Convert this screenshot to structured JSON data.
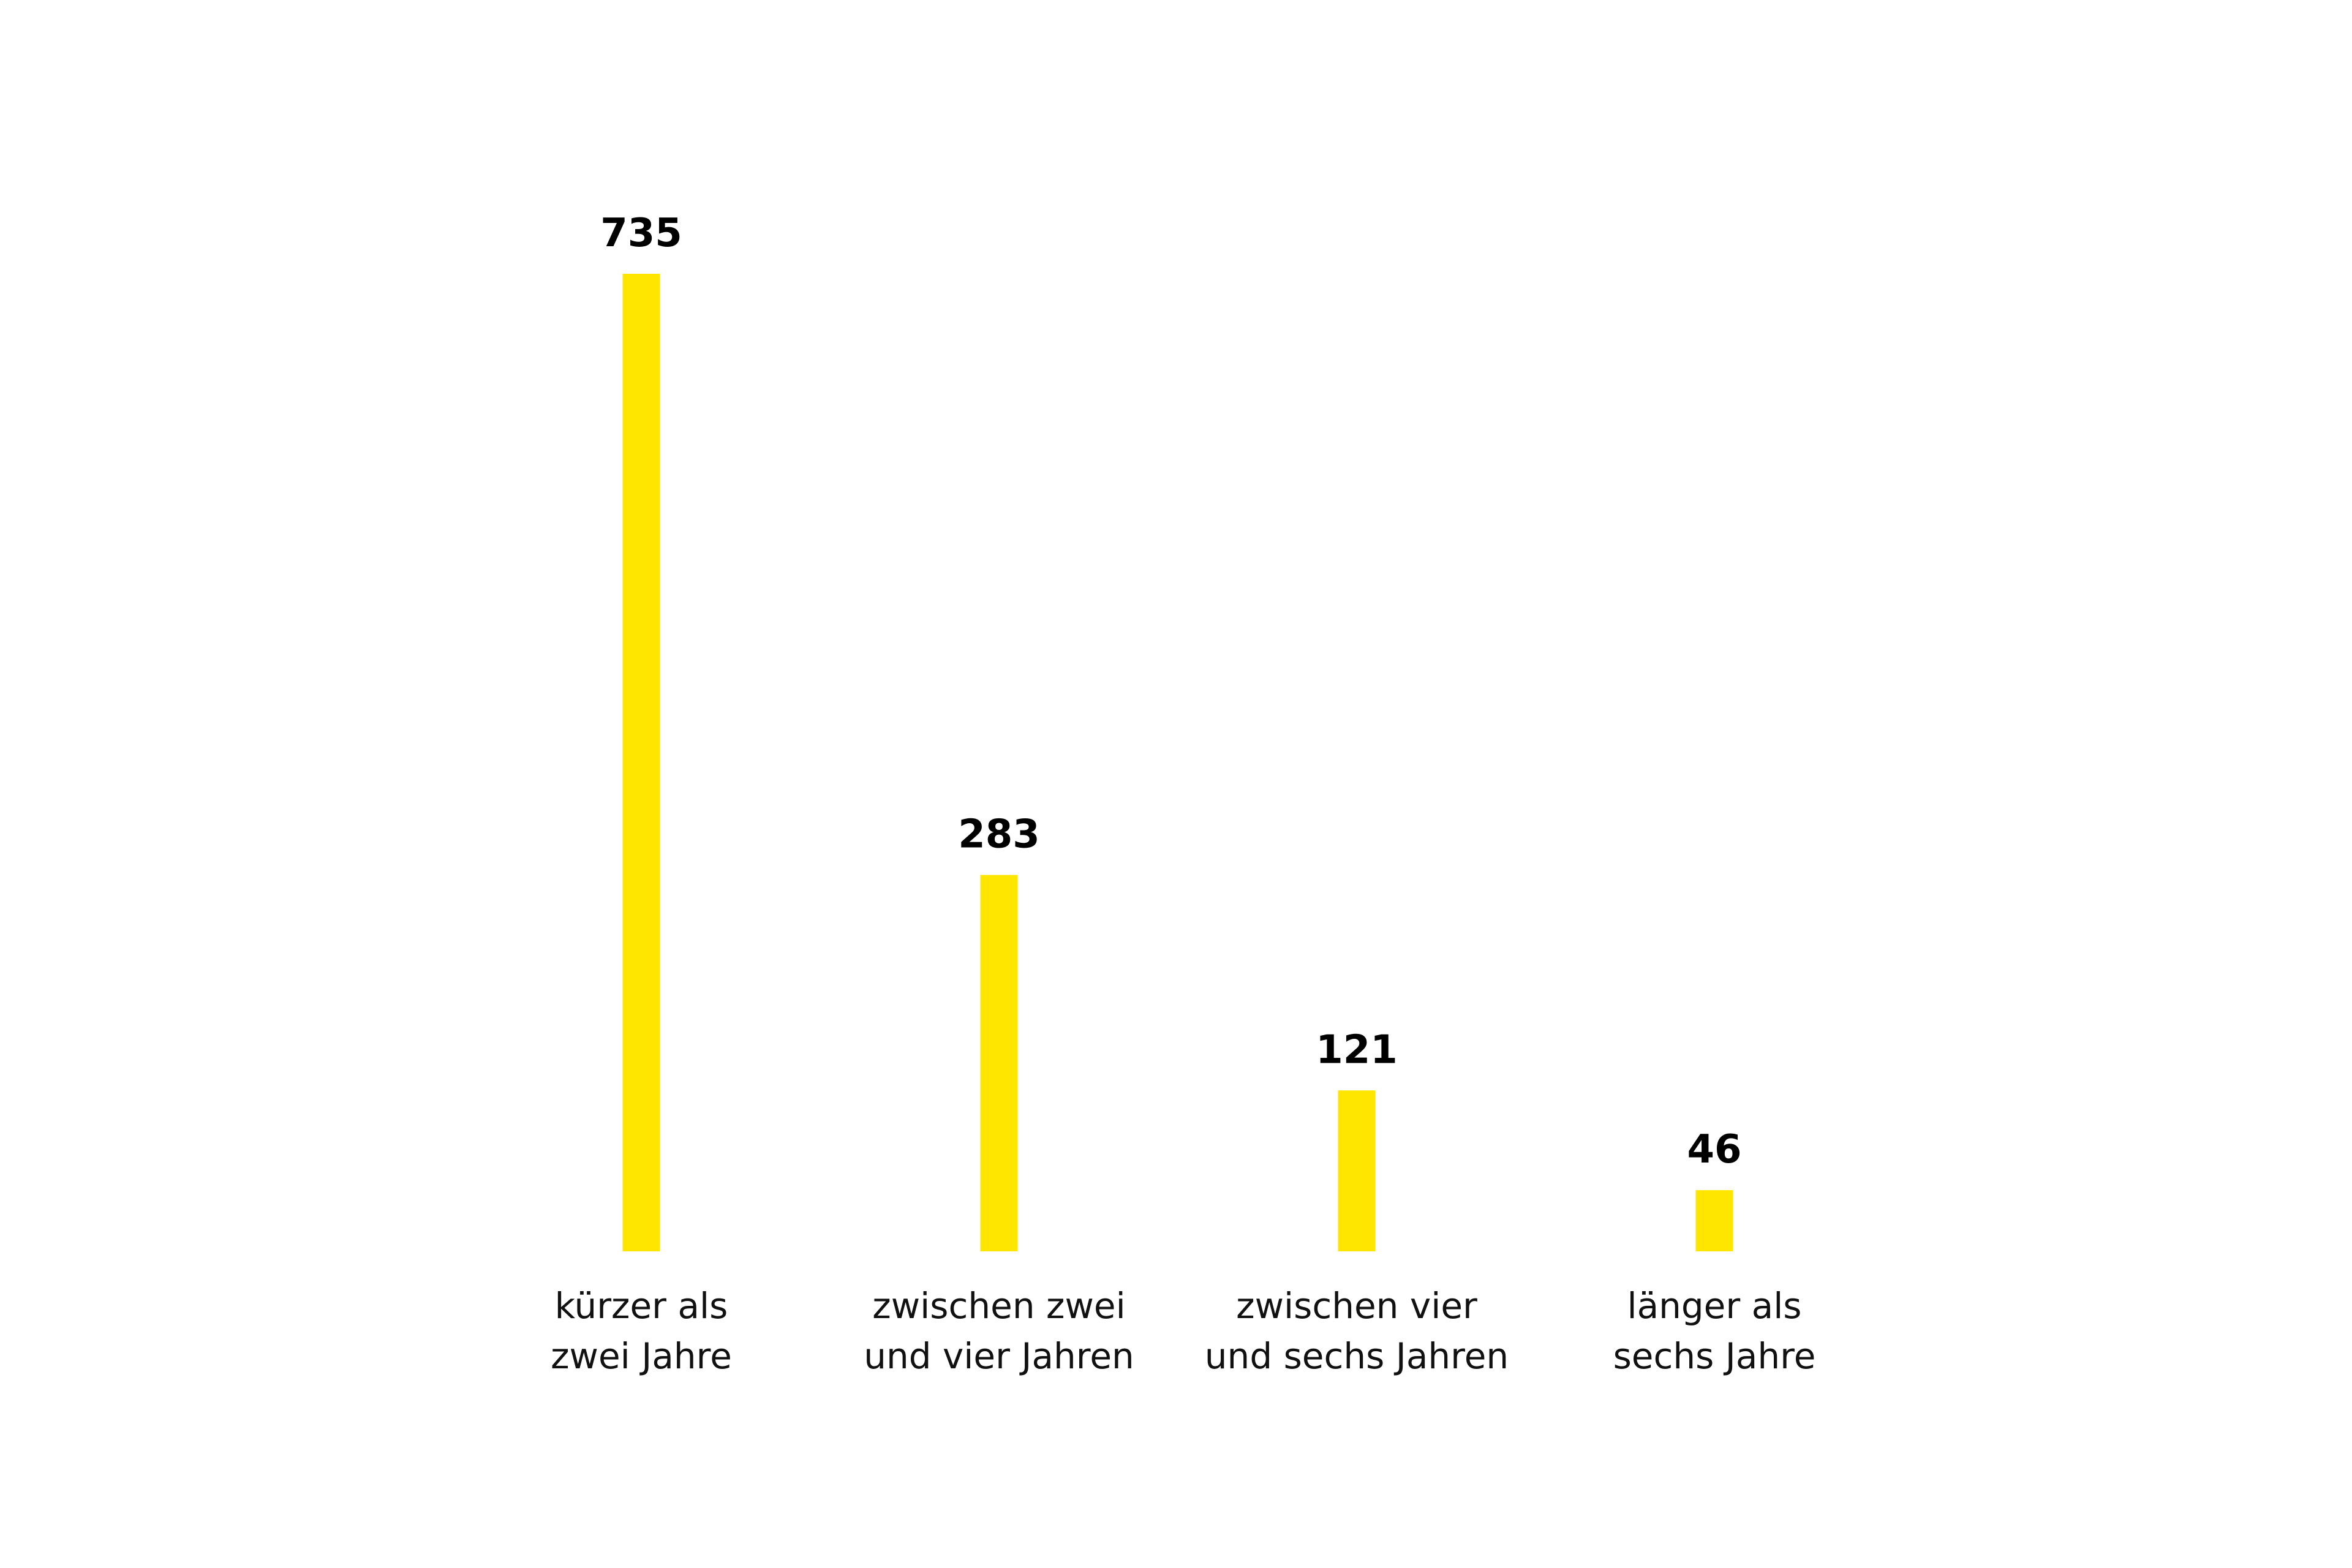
{
  "chart_data": {
    "type": "bar",
    "categories": [
      [
        "kürzer als",
        "zwei Jahre"
      ],
      [
        "zwischen zwei",
        "und vier Jahren"
      ],
      [
        "zwischen vier",
        "und sechs Jahren"
      ],
      [
        "länger als",
        "sechs Jahre"
      ]
    ],
    "values": [
      735,
      283,
      121,
      46
    ],
    "data_labels": [
      "735",
      "283",
      "121",
      "46"
    ],
    "title": "",
    "xlabel": "",
    "ylabel": "",
    "ylim": [
      0,
      735
    ],
    "grid": false,
    "bar_color": "#FFE600"
  }
}
